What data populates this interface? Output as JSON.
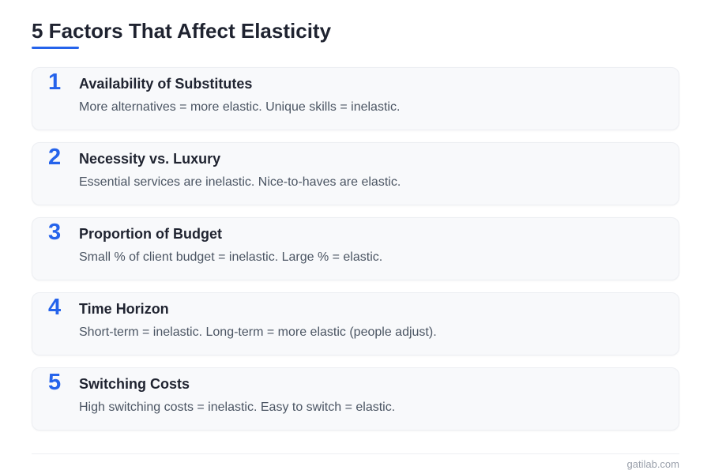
{
  "title": "5 Factors That Affect Elasticity",
  "accent_color": "#2563eb",
  "factors": [
    {
      "number": "1",
      "heading": "Availability of Substitutes",
      "description": "More alternatives = more elastic. Unique skills = inelastic."
    },
    {
      "number": "2",
      "heading": "Necessity vs. Luxury",
      "description": "Essential services are inelastic. Nice-to-haves are elastic."
    },
    {
      "number": "3",
      "heading": "Proportion of Budget",
      "description": "Small % of client budget = inelastic. Large % = elastic."
    },
    {
      "number": "4",
      "heading": "Time Horizon",
      "description": "Short-term = inelastic. Long-term = more elastic (people adjust)."
    },
    {
      "number": "5",
      "heading": "Switching Costs",
      "description": "High switching costs = inelastic. Easy to switch = elastic."
    }
  ],
  "footer": "gatilab.com"
}
